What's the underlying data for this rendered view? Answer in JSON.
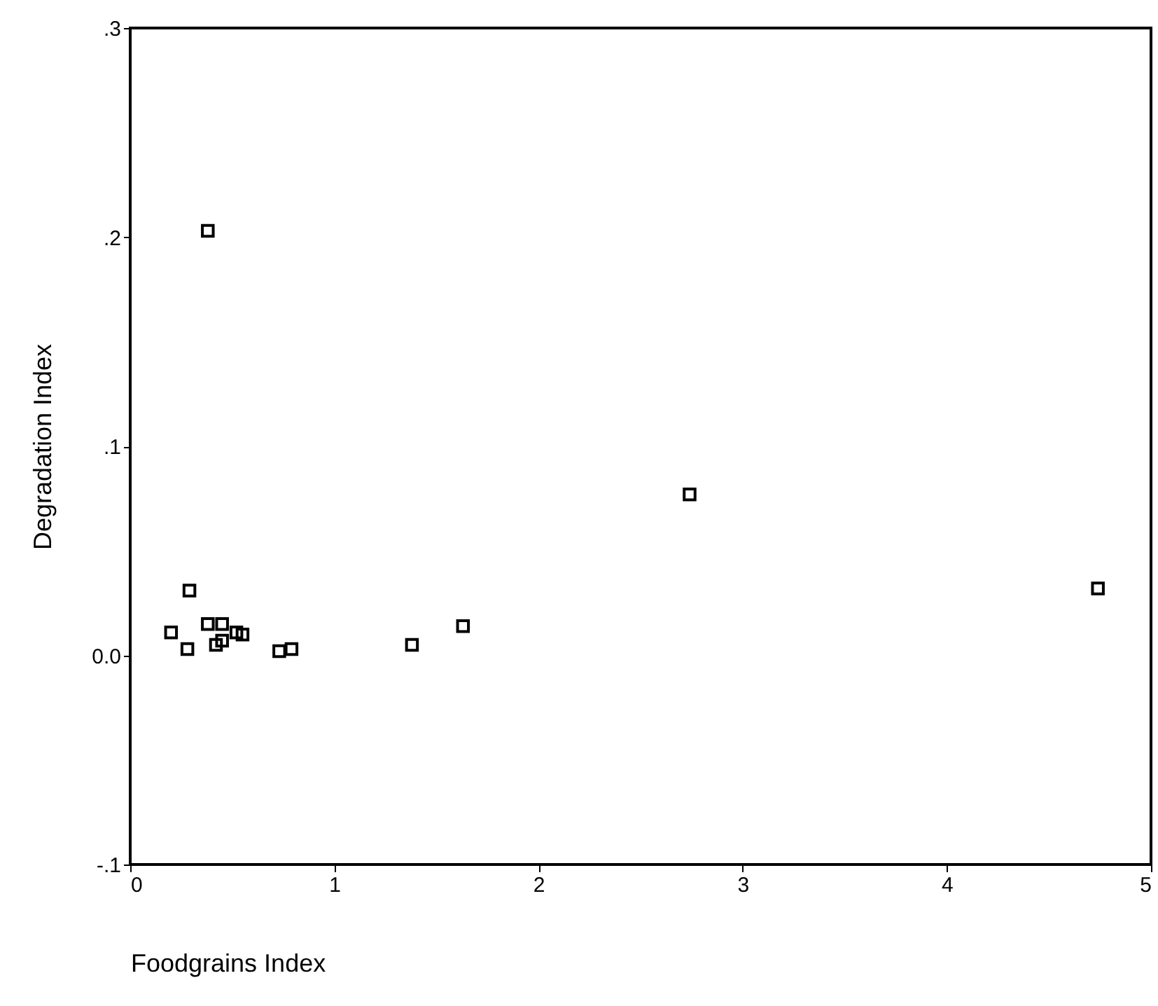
{
  "chart_data": {
    "type": "scatter",
    "xlabel": "Foodgrains Index",
    "ylabel": "Degradation Index",
    "marker": "square",
    "grid": false,
    "x": [
      0.2,
      0.29,
      0.28,
      0.38,
      0.45,
      0.45,
      0.42,
      0.52,
      0.55,
      0.73,
      0.79,
      1.38,
      1.63,
      0.38,
      2.74,
      4.74
    ],
    "values": [
      0.011,
      0.031,
      0.003,
      0.015,
      0.015,
      0.007,
      0.005,
      0.011,
      0.01,
      0.002,
      0.003,
      0.005,
      0.014,
      0.203,
      0.077,
      0.032
    ],
    "color": "#000000",
    "xlim": [
      0,
      5
    ],
    "xticks": [
      0,
      1,
      2,
      3,
      4,
      5
    ],
    "ylim": [
      -0.1,
      0.3
    ],
    "yticks": [
      {
        "value": -0.1,
        "label": "-.1"
      },
      {
        "value": 0,
        "label": "0.0"
      },
      {
        "value": 0.1,
        "label": ".1"
      },
      {
        "value": 0.2,
        "label": ".2"
      },
      {
        "value": 0.3,
        "label": ".3"
      }
    ]
  }
}
